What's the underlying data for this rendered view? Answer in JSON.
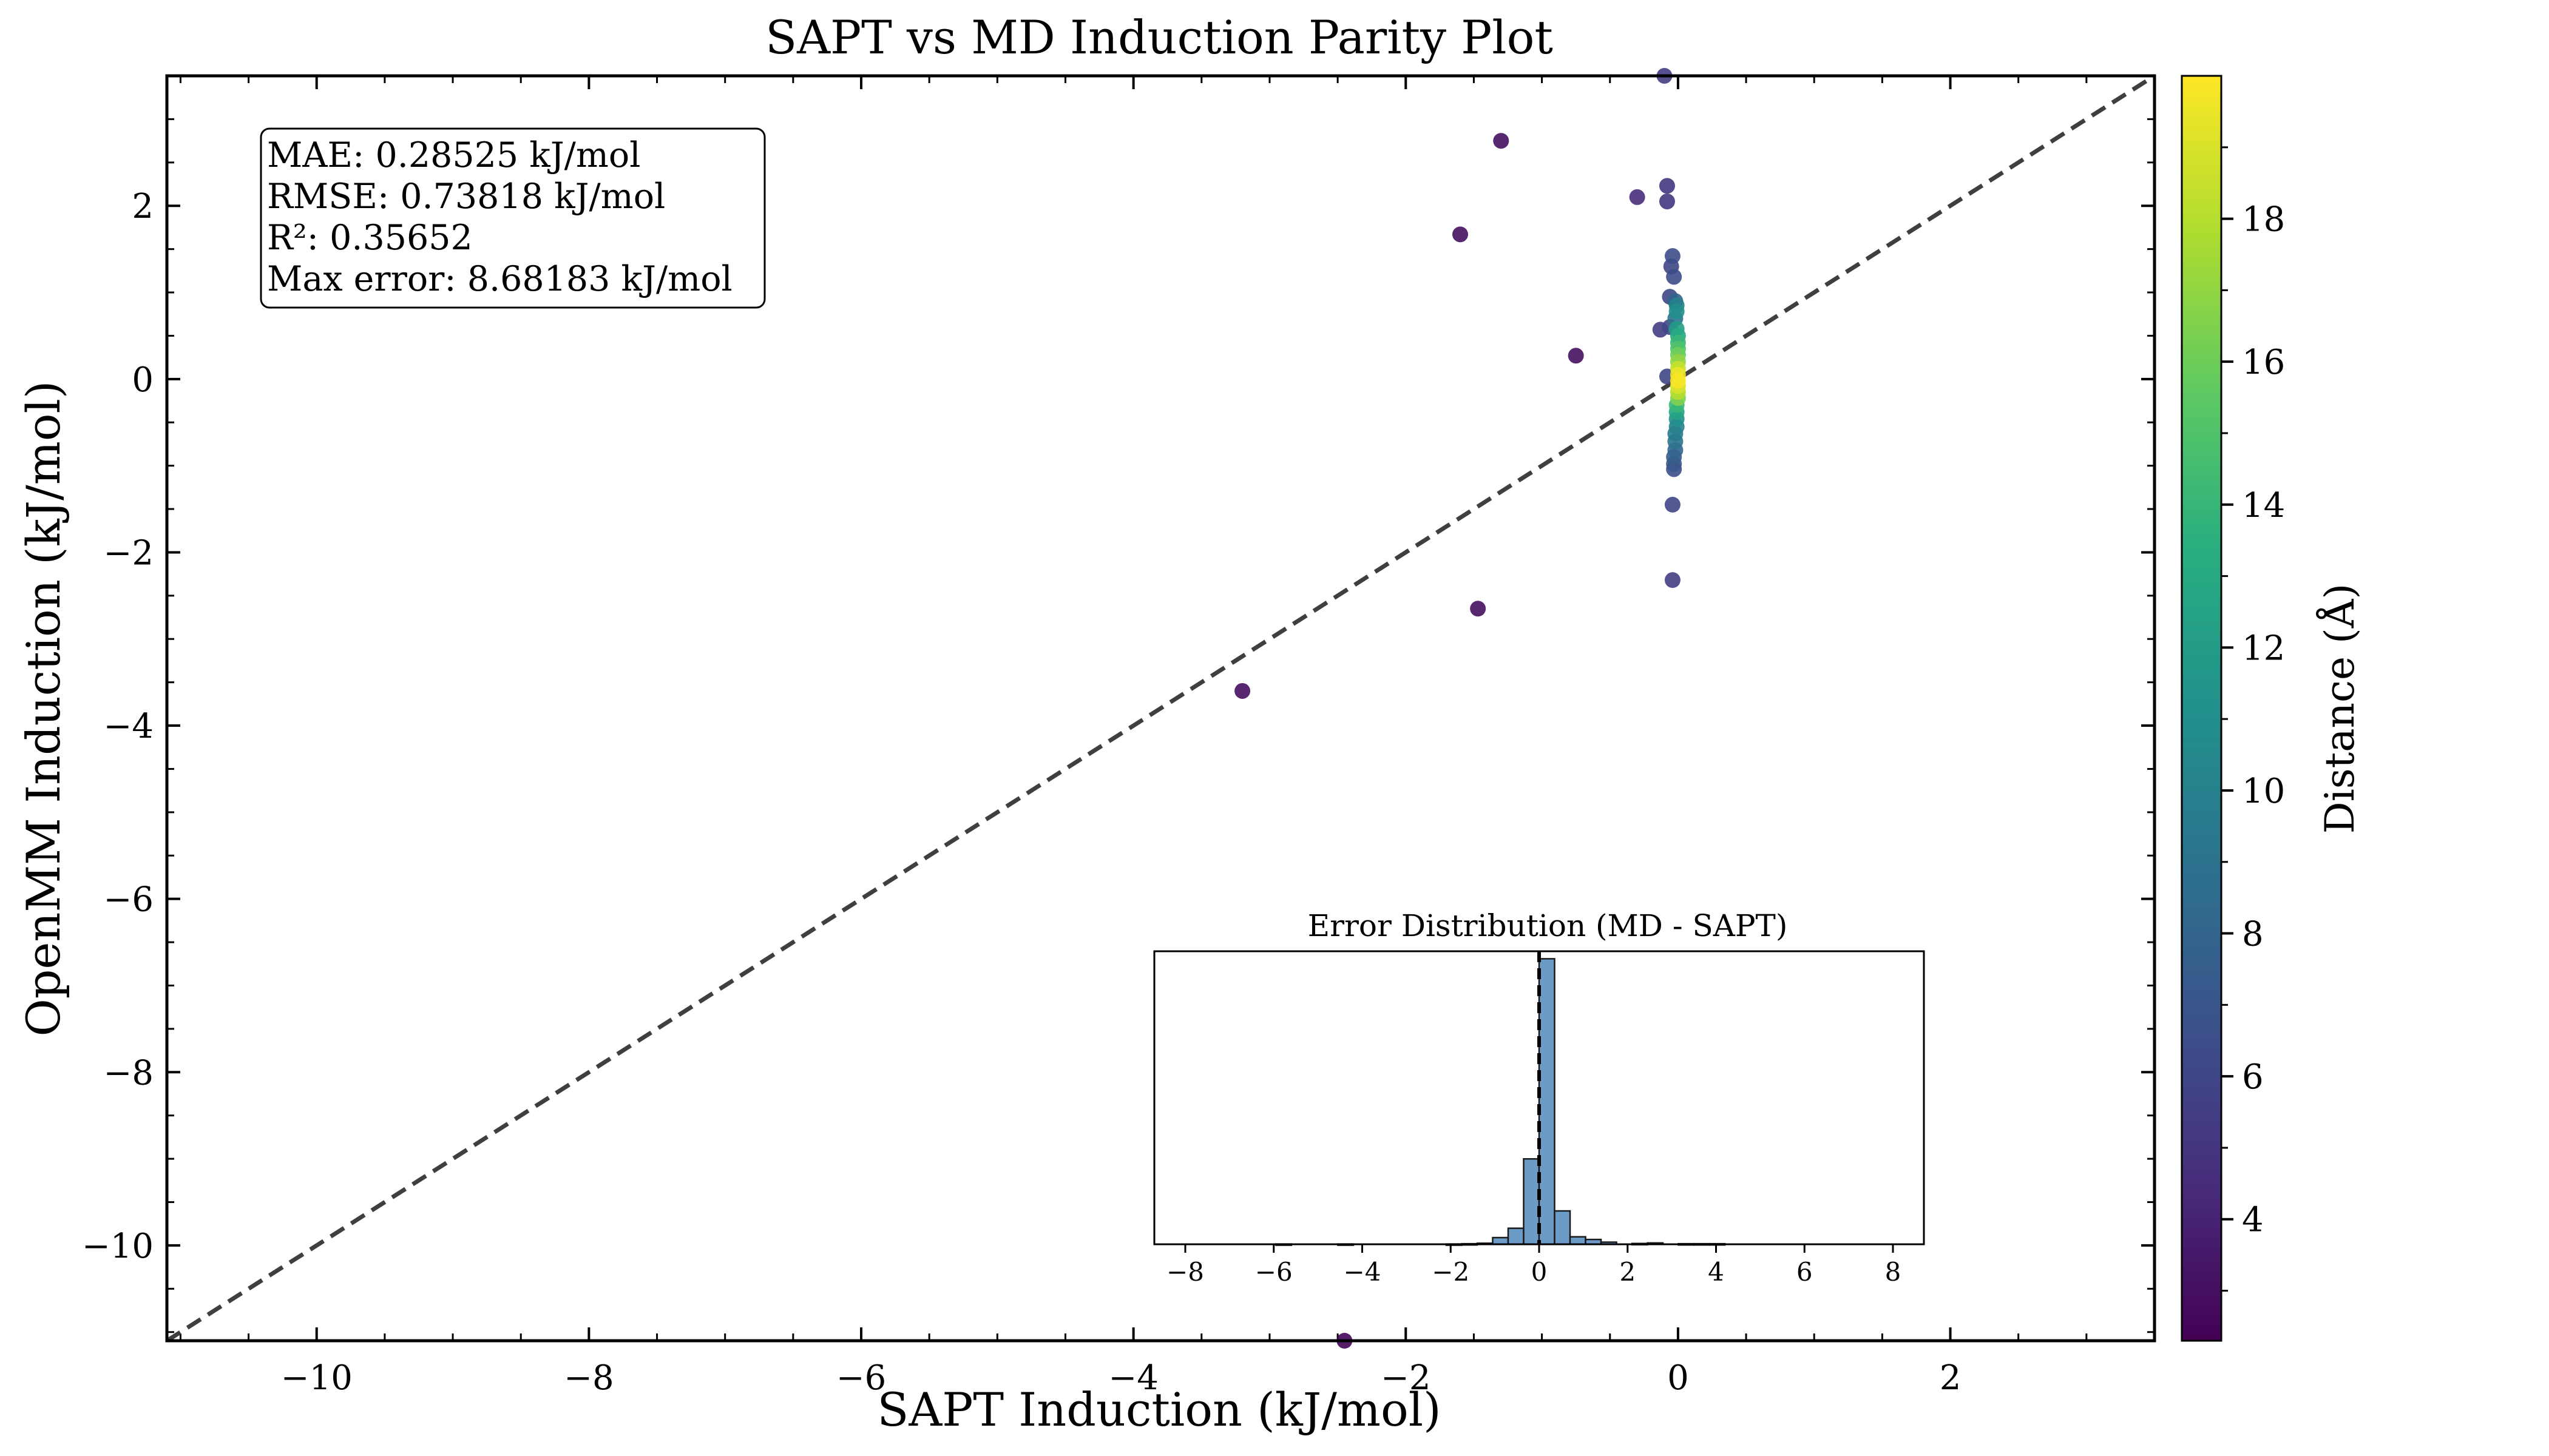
{
  "chart_data": [
    {
      "type": "scatter",
      "title": "SAPT vs MD Induction Parity Plot",
      "xlabel": "SAPT Induction (kJ/mol)",
      "ylabel": "OpenMM Induction (kJ/mol)",
      "xlim": [
        -11.1,
        3.5
      ],
      "ylim": [
        -11.1,
        3.5
      ],
      "xticks": [
        -10,
        -8,
        -6,
        -4,
        -2,
        0,
        2
      ],
      "yticks": [
        -10,
        -8,
        -6,
        -4,
        -2,
        0,
        2
      ],
      "tick_labels_x": [
        "−10",
        "−8",
        "−6",
        "−4",
        "−2",
        "0",
        "2"
      ],
      "tick_labels_y": [
        "−10",
        "−8",
        "−6",
        "−4",
        "−2",
        "0",
        "2"
      ],
      "reference_line": "y = x (dashed)",
      "colorbar": {
        "label": "Distance (Å)",
        "range": [
          2.3,
          20.0
        ],
        "ticks": [
          4,
          6,
          8,
          10,
          12,
          14,
          16,
          18
        ],
        "colormap": "viridis"
      },
      "stats": [
        "MAE: 0.28525 kJ/mol",
        "RMSE: 0.73818 kJ/mol",
        "R²: 0.35652",
        "Max error: 8.68183 kJ/mol"
      ],
      "points": [
        {
          "x": -0.1,
          "y": 3.5,
          "d": 5.5
        },
        {
          "x": -1.3,
          "y": 2.75,
          "d": 3.0
        },
        {
          "x": -0.08,
          "y": 2.23,
          "d": 5.0
        },
        {
          "x": -0.3,
          "y": 2.1,
          "d": 4.5
        },
        {
          "x": -0.08,
          "y": 2.05,
          "d": 5.0
        },
        {
          "x": -1.6,
          "y": 1.67,
          "d": 3.0
        },
        {
          "x": -0.04,
          "y": 1.42,
          "d": 6.5
        },
        {
          "x": -0.05,
          "y": 1.3,
          "d": 6.0
        },
        {
          "x": -0.03,
          "y": 1.18,
          "d": 6.5
        },
        {
          "x": -0.06,
          "y": 0.95,
          "d": 6.0
        },
        {
          "x": -0.02,
          "y": 0.9,
          "d": 8.0
        },
        {
          "x": -0.01,
          "y": 0.85,
          "d": 10.0
        },
        {
          "x": -0.01,
          "y": 0.78,
          "d": 11.0
        },
        {
          "x": -0.02,
          "y": 0.7,
          "d": 9.0
        },
        {
          "x": -0.06,
          "y": 0.6,
          "d": 6.0
        },
        {
          "x": -0.13,
          "y": 0.57,
          "d": 5.5
        },
        {
          "x": -0.01,
          "y": 0.58,
          "d": 12.0
        },
        {
          "x": -0.75,
          "y": 0.27,
          "d": 3.0
        },
        {
          "x": 0.0,
          "y": 0.5,
          "d": 13.0
        },
        {
          "x": 0.0,
          "y": 0.42,
          "d": 14.0
        },
        {
          "x": 0.0,
          "y": 0.35,
          "d": 15.0
        },
        {
          "x": 0.0,
          "y": 0.28,
          "d": 16.0
        },
        {
          "x": 0.0,
          "y": 0.2,
          "d": 17.0
        },
        {
          "x": 0.0,
          "y": 0.12,
          "d": 18.5
        },
        {
          "x": 0.0,
          "y": 0.05,
          "d": 19.5
        },
        {
          "x": -0.08,
          "y": 0.03,
          "d": 6.0
        },
        {
          "x": 0.0,
          "y": -0.02,
          "d": 19.8
        },
        {
          "x": 0.0,
          "y": -0.08,
          "d": 19.0
        },
        {
          "x": 0.0,
          "y": -0.15,
          "d": 18.0
        },
        {
          "x": 0.0,
          "y": -0.22,
          "d": 16.5
        },
        {
          "x": -0.01,
          "y": -0.3,
          "d": 14.0
        },
        {
          "x": -0.01,
          "y": -0.38,
          "d": 12.5
        },
        {
          "x": -0.01,
          "y": -0.46,
          "d": 11.0
        },
        {
          "x": -0.01,
          "y": -0.55,
          "d": 10.0
        },
        {
          "x": -0.02,
          "y": -0.63,
          "d": 9.5
        },
        {
          "x": -0.02,
          "y": -0.72,
          "d": 9.0
        },
        {
          "x": -0.02,
          "y": -0.82,
          "d": 8.0
        },
        {
          "x": -0.03,
          "y": -0.9,
          "d": 7.5
        },
        {
          "x": -0.03,
          "y": -0.98,
          "d": 7.0
        },
        {
          "x": -0.03,
          "y": -1.04,
          "d": 6.5
        },
        {
          "x": -0.04,
          "y": -1.45,
          "d": 6.0
        },
        {
          "x": -0.04,
          "y": -2.32,
          "d": 5.5
        },
        {
          "x": -1.47,
          "y": -2.65,
          "d": 3.0
        },
        {
          "x": -3.2,
          "y": -3.6,
          "d": 3.0
        },
        {
          "x": -2.45,
          "y": -11.1,
          "d": 2.5
        }
      ]
    },
    {
      "type": "bar",
      "title": "Error Distribution (MD - SAPT)",
      "xlim": [
        -8.7,
        8.7
      ],
      "xticks": [
        -8,
        -6,
        -4,
        -2,
        0,
        2,
        4,
        6,
        8
      ],
      "tick_labels_x": [
        "−8",
        "−6",
        "−4",
        "−2",
        "0",
        "2",
        "4",
        "6",
        "8"
      ],
      "bin_width": 0.35,
      "bins": [
        {
          "x0": -5.95,
          "count": 1
        },
        {
          "x0": -4.55,
          "count": 1
        },
        {
          "x0": -2.1,
          "count": 1
        },
        {
          "x0": -1.75,
          "count": 2
        },
        {
          "x0": -1.4,
          "count": 4
        },
        {
          "x0": -1.05,
          "count": 25
        },
        {
          "x0": -0.7,
          "count": 60
        },
        {
          "x0": -0.35,
          "count": 320
        },
        {
          "x0": 0.0,
          "count": 1070
        },
        {
          "x0": 0.35,
          "count": 125
        },
        {
          "x0": 0.7,
          "count": 28
        },
        {
          "x0": 1.05,
          "count": 18
        },
        {
          "x0": 1.4,
          "count": 8
        },
        {
          "x0": 2.1,
          "count": 3
        },
        {
          "x0": 2.45,
          "count": 5
        },
        {
          "x0": 3.15,
          "count": 2
        },
        {
          "x0": 3.5,
          "count": 2
        },
        {
          "x0": 3.85,
          "count": 2
        }
      ],
      "ymax": 1080,
      "reference_line": "x = 0 (dashed)"
    }
  ]
}
